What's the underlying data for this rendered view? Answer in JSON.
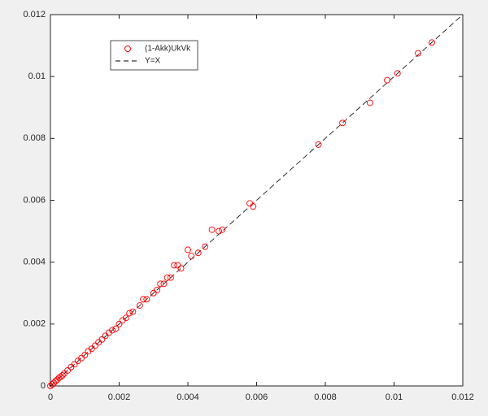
{
  "chart_data": {
    "type": "scatter",
    "xlim": [
      0,
      0.012
    ],
    "ylim": [
      0,
      0.012
    ],
    "xticks": [
      0,
      0.002,
      0.004,
      0.006,
      0.008,
      0.01,
      0.012
    ],
    "yticks": [
      0,
      0.002,
      0.004,
      0.006,
      0.008,
      0.01,
      0.012
    ],
    "grid": false,
    "legend": "northwest",
    "series": [
      {
        "name": "(1-Akk)UkVk",
        "color": "#ff0000",
        "marker": "circle",
        "x": [
          0,
          5e-05,
          0.0001,
          0.00015,
          0.0002,
          0.00025,
          0.0003,
          0.00035,
          0.0004,
          0.0005,
          0.0006,
          0.0007,
          0.0008,
          0.0009,
          0.001,
          0.0011,
          0.0012,
          0.0013,
          0.0014,
          0.0015,
          0.0016,
          0.0017,
          0.0018,
          0.0019,
          0.002,
          0.0021,
          0.0022,
          0.0023,
          0.0024,
          0.0026,
          0.0027,
          0.0028,
          0.003,
          0.0031,
          0.0032,
          0.0033,
          0.0034,
          0.0035,
          0.0036,
          0.0037,
          0.0038,
          0.004,
          0.0041,
          0.0043,
          0.0045,
          0.0047,
          0.0049,
          0.005,
          0.0058,
          0.0059,
          0.0078,
          0.0085,
          0.0093,
          0.0098,
          0.0101,
          0.0107,
          0.0111
        ],
        "values": [
          0,
          5e-05,
          0.0001,
          0.00016,
          0.0002,
          0.00026,
          0.0003,
          0.00034,
          0.0004,
          0.0005,
          0.00061,
          0.0007,
          0.00081,
          0.0009,
          0.001,
          0.00112,
          0.0012,
          0.0013,
          0.00141,
          0.0015,
          0.00162,
          0.00172,
          0.0018,
          0.00185,
          0.002,
          0.00212,
          0.0022,
          0.00235,
          0.0024,
          0.0026,
          0.0028,
          0.0028,
          0.003,
          0.0031,
          0.0033,
          0.0033,
          0.0035,
          0.0035,
          0.0039,
          0.0039,
          0.0038,
          0.0044,
          0.0042,
          0.0043,
          0.0045,
          0.00505,
          0.005,
          0.00505,
          0.0059,
          0.0058,
          0.0078,
          0.0085,
          0.00915,
          0.00988,
          0.0101,
          0.01075,
          0.0111
        ]
      },
      {
        "name": "Y=X",
        "color": "#000000",
        "linestyle": "dashed",
        "x": [
          0,
          0.012
        ],
        "values": [
          0,
          0.012
        ]
      }
    ]
  }
}
